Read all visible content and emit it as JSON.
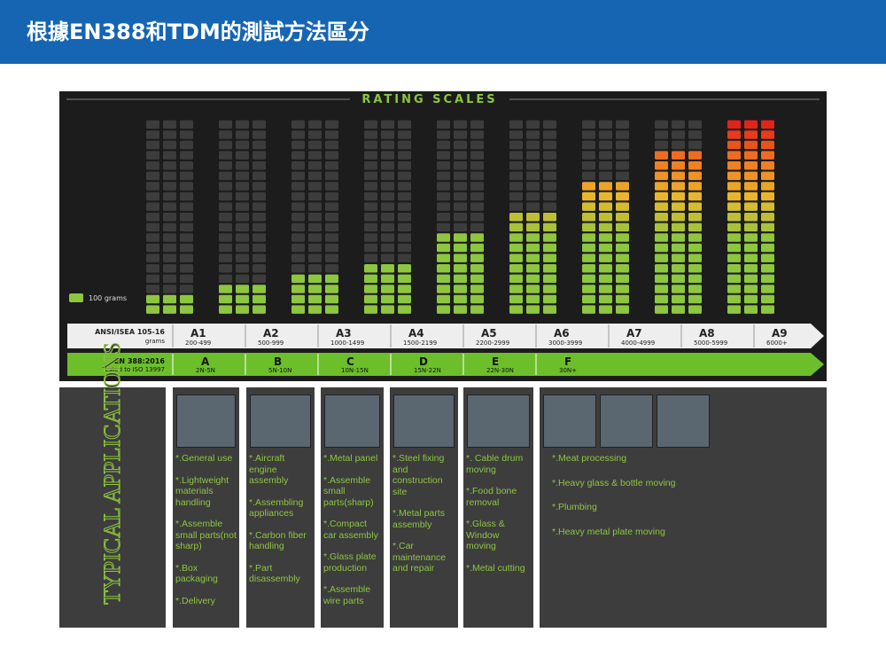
{
  "header": {
    "title": "根據EN388和TDM的測試方法區分"
  },
  "scale": {
    "title": "RATING SCALES",
    "legend": "100 grams",
    "rows": 19,
    "ansi": {
      "name": "ANSI/ISEA 105-16",
      "unit": "grams",
      "levels": [
        {
          "label": "A1",
          "range": "200-499",
          "lit": 2
        },
        {
          "label": "A2",
          "range": "500-999",
          "lit": 3
        },
        {
          "label": "A3",
          "range": "1000-1499",
          "lit": 4
        },
        {
          "label": "A4",
          "range": "1500-2199",
          "lit": 5
        },
        {
          "label": "A5",
          "range": "2200-2999",
          "lit": 8
        },
        {
          "label": "A6",
          "range": "3000-3999",
          "lit": 10
        },
        {
          "label": "A7",
          "range": "4000-4999",
          "lit": 13
        },
        {
          "label": "A8",
          "range": "5000-5999",
          "lit": 16
        },
        {
          "label": "A9",
          "range": "6000+",
          "lit": 19
        }
      ]
    },
    "en": {
      "name": "EN 388:2016",
      "note": "Tested to ISO 13997",
      "levels": [
        {
          "label": "A",
          "range": "2N-5N"
        },
        {
          "label": "B",
          "range": "5N-10N"
        },
        {
          "label": "C",
          "range": "10N-15N"
        },
        {
          "label": "D",
          "range": "15N-22N"
        },
        {
          "label": "E",
          "range": "22N-30N"
        },
        {
          "label": "F",
          "range": "30N+"
        }
      ]
    }
  },
  "applications": {
    "title": "TYPICAL APPLICATIONS",
    "columns": [
      [
        "*.General use",
        "*.Lightweight materials handling",
        "*.Assemble small parts(not sharp)",
        "*.Box packaging",
        "*.Delivery"
      ],
      [
        "*.Aircraft engine assembly",
        "*.Assembling appliances",
        "*.Carbon fiber handling",
        "*.Part disassembly"
      ],
      [
        "*.Metal panel",
        "*.Assemble small parts(sharp)",
        "*.Compact car assembly",
        "*.Glass plate production",
        "*.Assemble wire parts"
      ],
      [
        "*.Steel fixing and construction site",
        "*.Metal parts assembly",
        "*.Car maintenance and repair"
      ],
      [
        "*. Cable drum moving",
        "*.Food bone removal",
        "*.Glass & Window moving",
        "*.Metal cutting"
      ],
      [
        "*.Meat processing",
        "*.Heavy glass & bottle moving",
        "*.Plumbing",
        "*.Heavy metal plate moving"
      ]
    ]
  }
}
